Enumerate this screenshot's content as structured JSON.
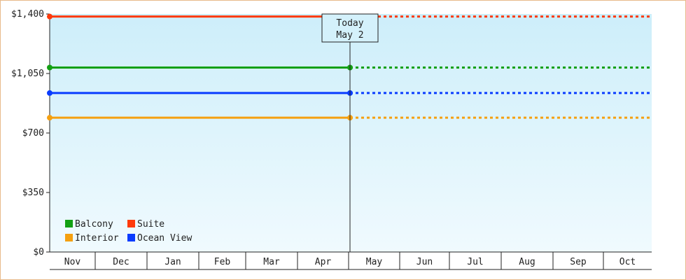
{
  "chart_data": {
    "type": "line",
    "title": "",
    "xlabel": "",
    "ylabel": "",
    "categories": [
      "Nov",
      "Dec",
      "Jan",
      "Feb",
      "Mar",
      "Apr",
      "May",
      "Jun",
      "Jul",
      "Aug",
      "Sep",
      "Oct"
    ],
    "yticks": [
      "$0",
      "$350",
      "$700",
      "$1,050",
      "$1,400"
    ],
    "ylim": [
      0,
      1400
    ],
    "grid": false,
    "legend_position": "bottom-left",
    "today": {
      "line1": "Today",
      "line2": "May 2"
    },
    "series": [
      {
        "name": "Balcony",
        "color": "#13a013",
        "value": 1085
      },
      {
        "name": "Suite",
        "color": "#ff3a0a",
        "value": 1385
      },
      {
        "name": "Interior",
        "color": "#f5a010",
        "value": 790
      },
      {
        "name": "Ocean View",
        "color": "#0a3cff",
        "value": 935
      }
    ]
  }
}
